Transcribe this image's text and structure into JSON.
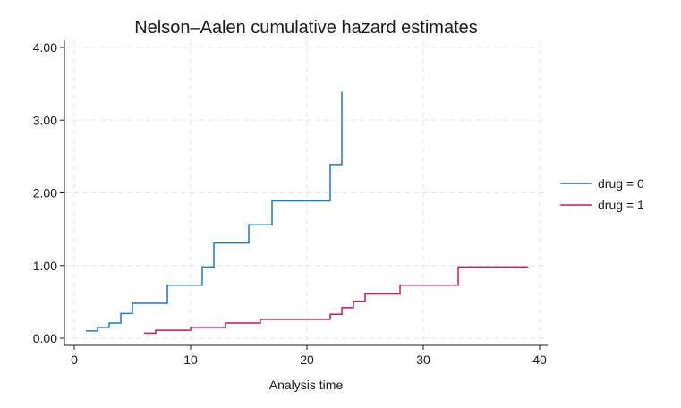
{
  "chart_data": {
    "type": "line",
    "step": true,
    "title": "Nelson–Aalen cumulative hazard estimates",
    "xlabel": "Analysis time",
    "ylabel": "",
    "xlim": [
      0,
      40
    ],
    "ylim": [
      0,
      4
    ],
    "xticks": [
      0,
      10,
      20,
      30,
      40
    ],
    "xtick_labels": [
      "0",
      "10",
      "20",
      "30",
      "40"
    ],
    "yticks": [
      0,
      1,
      2,
      3,
      4
    ],
    "ytick_labels": [
      "0.00",
      "1.00",
      "2.00",
      "3.00",
      "4.00"
    ],
    "grid": true,
    "legend_position": "right",
    "series": [
      {
        "name": "drug = 0",
        "color": "#1f77d4",
        "points": [
          [
            1,
            0.1
          ],
          [
            2,
            0.15
          ],
          [
            3,
            0.21
          ],
          [
            4,
            0.34
          ],
          [
            5,
            0.48
          ],
          [
            8,
            0.73
          ],
          [
            11,
            0.98
          ],
          [
            12,
            1.31
          ],
          [
            15,
            1.56
          ],
          [
            17,
            1.89
          ],
          [
            22,
            2.39
          ],
          [
            23,
            3.39
          ]
        ]
      },
      {
        "name": "drug = 1",
        "color": "#c8175a",
        "points": [
          [
            6,
            0.07
          ],
          [
            7,
            0.11
          ],
          [
            10,
            0.15
          ],
          [
            13,
            0.21
          ],
          [
            16,
            0.26
          ],
          [
            22,
            0.33
          ],
          [
            23,
            0.42
          ],
          [
            24,
            0.51
          ],
          [
            25,
            0.61
          ],
          [
            28,
            0.73
          ],
          [
            33,
            0.98
          ],
          [
            39,
            0.98
          ]
        ]
      }
    ]
  }
}
